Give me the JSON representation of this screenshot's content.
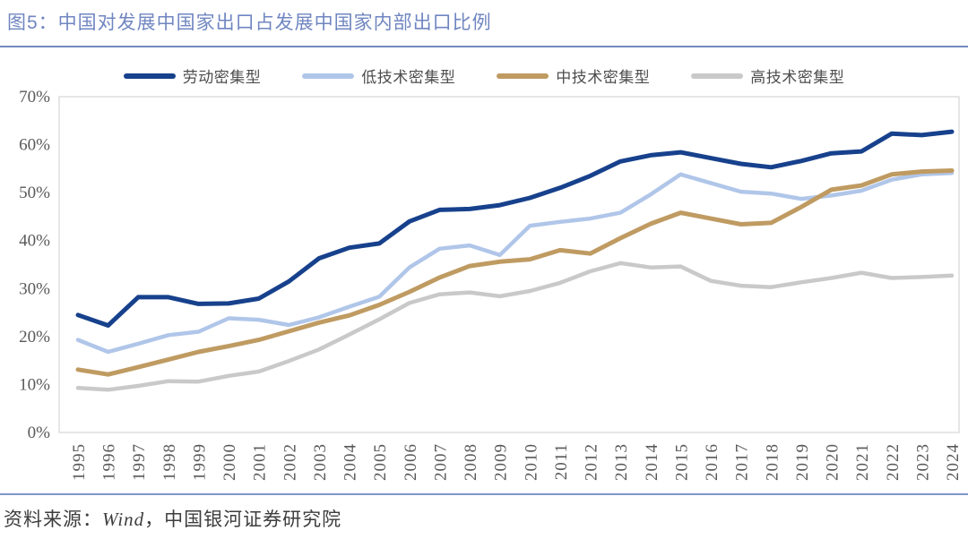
{
  "header": {
    "title": "图5：中国对发展中国家出口占发展中国家内部出口比例"
  },
  "footer": {
    "source_prefix": "资料来源：",
    "source_wind": "Wind",
    "source_suffix": "，中国银河证券研究院"
  },
  "colors": {
    "title_blue": "#7086c1",
    "rule_blue": "#7289bf",
    "axis_text": "#595959",
    "plot_frame": "#dcdcdc",
    "labor": "#17418c",
    "low_tech": "#b0c6e9",
    "mid_tech": "#bf9b62",
    "high_tech": "#c9c9c9"
  },
  "chart_data": {
    "type": "line",
    "title": "中国对发展中国家出口占发展中国家内部出口比例",
    "xlabel": "",
    "ylabel": "",
    "ylim": [
      0,
      70
    ],
    "y_ticks": [
      0,
      10,
      20,
      30,
      40,
      50,
      60,
      70
    ],
    "y_tick_labels": [
      "0%",
      "10%",
      "20%",
      "30%",
      "40%",
      "50%",
      "60%",
      "70%"
    ],
    "grid": false,
    "legend_position": "top",
    "x": [
      1995,
      1996,
      1997,
      1998,
      1999,
      2000,
      2001,
      2002,
      2003,
      2004,
      2005,
      2006,
      2007,
      2008,
      2009,
      2010,
      2011,
      2012,
      2013,
      2014,
      2015,
      2016,
      2017,
      2018,
      2019,
      2020,
      2021,
      2022,
      2023,
      2024
    ],
    "series": [
      {
        "name": "劳动密集型",
        "color": "#17418c",
        "stroke_width": 5,
        "values": [
          24.5,
          22.3,
          28.2,
          28.2,
          26.8,
          26.9,
          27.9,
          31.5,
          36.3,
          38.5,
          39.4,
          44.0,
          46.4,
          46.6,
          47.4,
          48.9,
          51.0,
          53.5,
          56.5,
          57.8,
          58.4,
          57.2,
          56.0,
          55.3,
          56.6,
          58.2,
          58.6,
          62.3,
          62.0,
          62.7
        ]
      },
      {
        "name": "低技术密集型",
        "color": "#b0c6e9",
        "stroke_width": 4.5,
        "values": [
          19.3,
          16.8,
          18.5,
          20.3,
          21.0,
          23.8,
          23.5,
          22.4,
          24.0,
          26.2,
          28.3,
          34.4,
          38.3,
          39.0,
          37.0,
          43.1,
          43.9,
          44.6,
          45.8,
          49.6,
          53.8,
          52.0,
          50.2,
          49.8,
          48.7,
          49.4,
          50.4,
          52.7,
          53.8,
          54.1
        ]
      },
      {
        "name": "中技术密集型",
        "color": "#bf9b62",
        "stroke_width": 5,
        "values": [
          13.1,
          12.1,
          13.6,
          15.2,
          16.8,
          18.0,
          19.3,
          21.1,
          22.9,
          24.4,
          26.6,
          29.3,
          32.3,
          34.7,
          35.6,
          36.1,
          38.0,
          37.3,
          40.5,
          43.5,
          45.8,
          44.6,
          43.4,
          43.7,
          47.0,
          50.6,
          51.5,
          53.8,
          54.4,
          54.6
        ]
      },
      {
        "name": "高技术密集型",
        "color": "#c9c9c9",
        "stroke_width": 4.5,
        "values": [
          9.3,
          8.9,
          9.7,
          10.7,
          10.6,
          11.8,
          12.7,
          14.9,
          17.3,
          20.4,
          23.6,
          27.0,
          28.8,
          29.2,
          28.4,
          29.5,
          31.2,
          33.6,
          35.3,
          34.4,
          34.6,
          31.6,
          30.6,
          30.3,
          31.3,
          32.2,
          33.3,
          32.2,
          32.4,
          32.7
        ]
      }
    ]
  }
}
